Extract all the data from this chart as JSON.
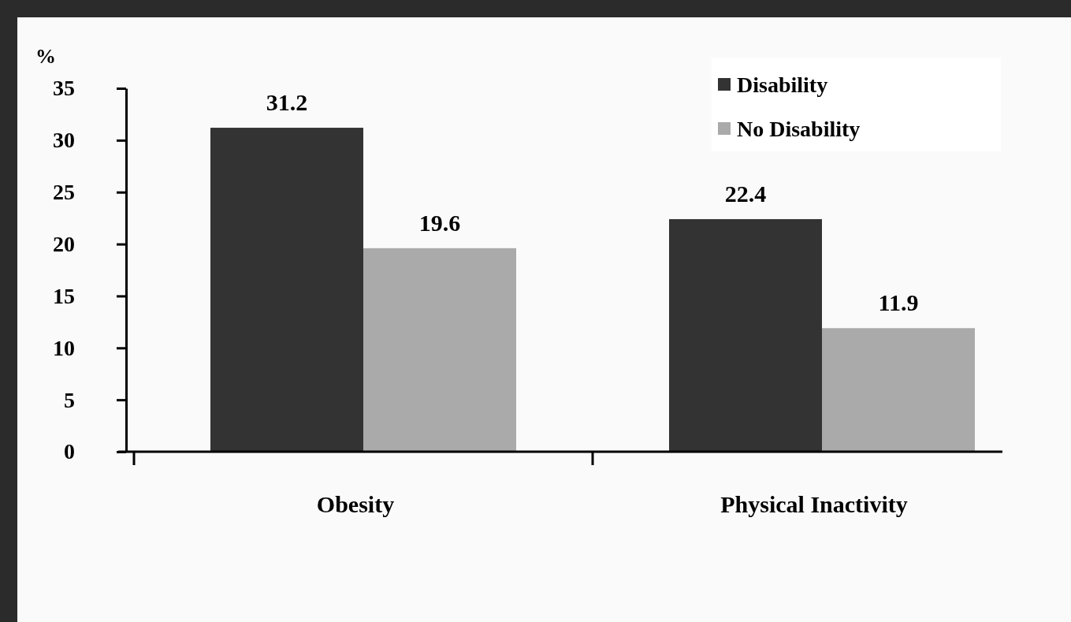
{
  "chart_data": {
    "type": "bar",
    "ylabel": "%",
    "categories": [
      "Obesity",
      "Physical Inactivity"
    ],
    "series": [
      {
        "name": "Disability",
        "color": "#333333",
        "values": [
          31.2,
          22.4
        ]
      },
      {
        "name": "No Disability",
        "color": "#aaaaaa",
        "values": [
          19.6,
          11.9
        ]
      }
    ],
    "ylim": [
      0,
      35
    ],
    "yticks": [
      0,
      5,
      10,
      15,
      20,
      25,
      30,
      35
    ],
    "data_labels": true,
    "legend": "top right",
    "grid": false
  }
}
